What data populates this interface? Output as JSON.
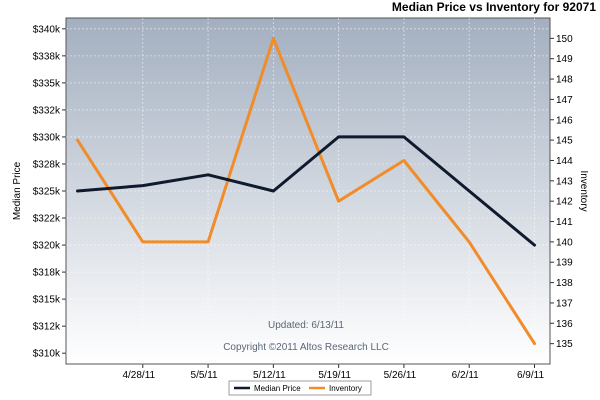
{
  "chart_data": {
    "type": "line",
    "title": "Median Price vs Inventory for 92071",
    "ylabel": "Median Price",
    "y2label": "Inventory",
    "categories": [
      "",
      "4/28/11",
      "5/5/11",
      "5/12/11",
      "5/19/11",
      "5/26/11",
      "6/2/11",
      "6/9/11"
    ],
    "x_tick_labels": [
      "4/28/11",
      "5/5/11",
      "5/12/11",
      "5/19/11",
      "5/26/11",
      "6/2/11",
      "6/9/11"
    ],
    "ylim": [
      309000,
      341000
    ],
    "y_ticks": [
      310000,
      312500,
      315000,
      317500,
      320000,
      322500,
      325000,
      327500,
      330000,
      332500,
      335000,
      337500,
      340000
    ],
    "y_tick_labels": [
      "$310k",
      "$312k",
      "$315k",
      "$318k",
      "$320k",
      "$322k",
      "$325k",
      "$328k",
      "$330k",
      "$332k",
      "$335k",
      "$338k",
      "$340k"
    ],
    "y2lim": [
      134,
      151
    ],
    "y2_ticks": [
      135,
      136,
      137,
      138,
      139,
      140,
      141,
      142,
      143,
      144,
      145,
      146,
      147,
      148,
      149,
      150
    ],
    "series": [
      {
        "name": "Median Price",
        "axis": "left",
        "color": "#0f1a2e",
        "values": [
          325000,
          325500,
          326500,
          325000,
          330000,
          330000,
          325000,
          320000
        ]
      },
      {
        "name": "Inventory",
        "axis": "right",
        "color": "#f08c2a",
        "values": [
          145,
          140,
          140,
          150,
          142,
          144,
          140,
          135
        ]
      }
    ],
    "annotations": [
      "Updated: 6/13/11",
      "Copyright ©2011 Altos Research LLC"
    ],
    "legend_position": "bottom",
    "grid": true,
    "background": "gradient slate-blue to white"
  }
}
